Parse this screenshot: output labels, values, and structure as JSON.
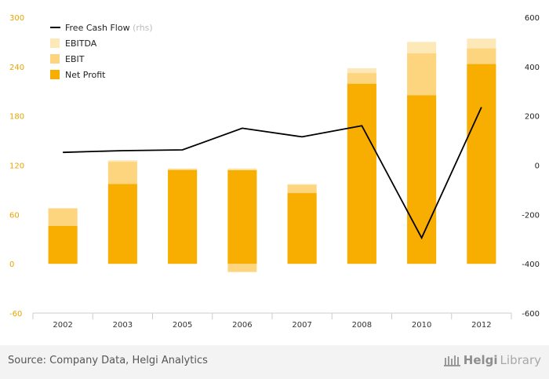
{
  "chart_data": {
    "type": "bar",
    "categories": [
      "2002",
      "2003",
      "2005",
      "2006",
      "2007",
      "2008",
      "2010",
      "2012"
    ],
    "series": [
      {
        "name": "EBITDA",
        "type": "bar",
        "axis": "left",
        "color": "#fde8b8",
        "values": [
          68,
          126,
          116,
          116,
          97,
          238,
          270,
          274
        ]
      },
      {
        "name": "EBIT",
        "type": "bar",
        "axis": "left",
        "color": "#fcd57e",
        "values": [
          67,
          124,
          115,
          -10,
          96,
          232,
          256,
          262
        ]
      },
      {
        "name": "Net Profit",
        "type": "bar",
        "axis": "left",
        "color": "#f8ae00",
        "values": [
          46,
          97,
          114,
          114,
          86,
          219,
          205,
          243
        ]
      },
      {
        "name": "Free Cash Flow",
        "type": "line",
        "axis": "right",
        "color": "#000000",
        "values": [
          52,
          59,
          62,
          150,
          115,
          160,
          -295,
          235
        ]
      }
    ],
    "yticks_left": [
      "300",
      "240",
      "180",
      "120",
      "60",
      "0",
      "-60"
    ],
    "yticks_right": [
      "600",
      "400",
      "200",
      "0",
      "-200",
      "-400",
      "-600"
    ],
    "ylim_left": [
      -60,
      300
    ],
    "ylim_right": [
      -600,
      600
    ],
    "legend": {
      "placement": "top-left",
      "line_label": "Free Cash Flow",
      "rhs_tag": "(rhs)",
      "bar_labels": [
        "EBITDA",
        "EBIT",
        "Net Profit"
      ]
    },
    "grid": false,
    "colors": {
      "left_axis_text": "#e9a400",
      "right_axis_text": "#222222",
      "axis_line": "#cccccc"
    }
  },
  "footer": {
    "source": "Source: Company Data, Helgi Analytics",
    "logo_helgi": "Helgi",
    "logo_library": "Library"
  }
}
